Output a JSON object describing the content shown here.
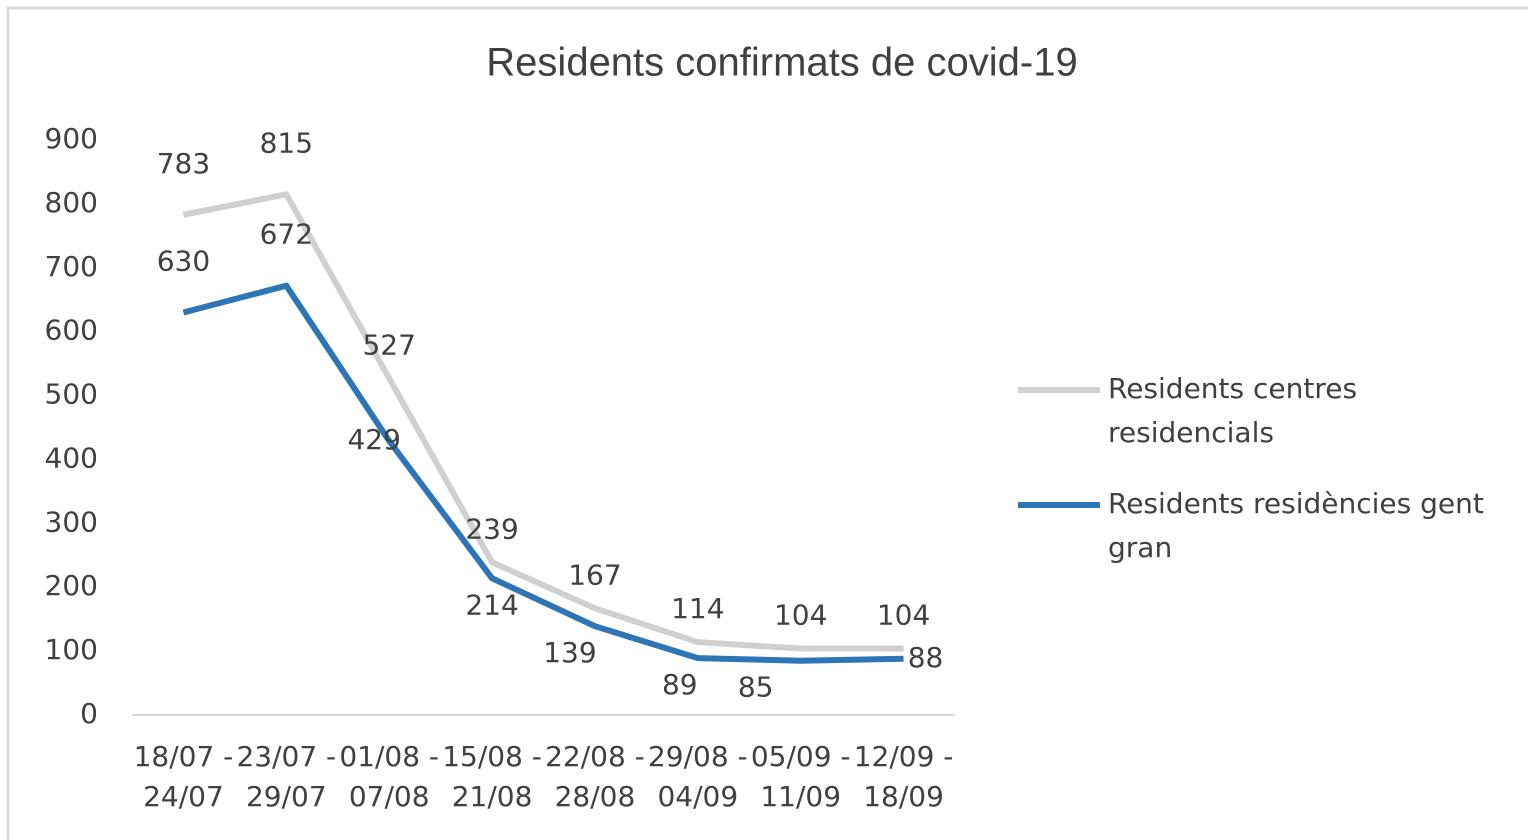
{
  "chart_data": {
    "type": "line",
    "title": "Residents confirmats de covid-19",
    "categories": [
      "18/07 - 24/07",
      "23/07 - 29/07",
      "01/08 - 07/08",
      "15/08 - 21/08",
      "22/08 - 28/08",
      "29/08 - 04/09",
      "05/09 - 11/09",
      "12/09 - 18/09"
    ],
    "series": [
      {
        "name": "Residents centres residencials",
        "color": "#d0d0d0",
        "values": [
          783,
          815,
          527,
          239,
          167,
          114,
          104,
          104
        ]
      },
      {
        "name": "Residents residències gent gran",
        "color": "#2e75b6",
        "values": [
          630,
          672,
          429,
          214,
          139,
          89,
          85,
          88
        ]
      }
    ],
    "ylim": [
      0,
      900
    ],
    "yticks": [
      0,
      100,
      200,
      300,
      400,
      500,
      600,
      700,
      800,
      900
    ],
    "grid": false,
    "legend": "right"
  }
}
